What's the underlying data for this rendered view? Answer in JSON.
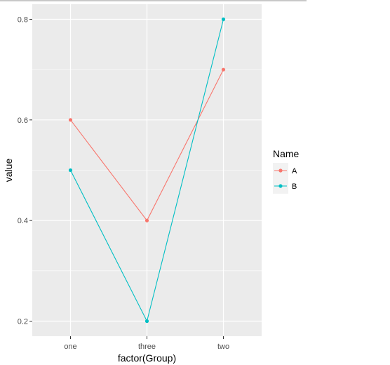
{
  "chart_data": {
    "type": "line",
    "categories": [
      "one",
      "three",
      "two"
    ],
    "series": [
      {
        "name": "A",
        "values": [
          0.6,
          0.4,
          0.7
        ],
        "color": "#F8766D"
      },
      {
        "name": "B",
        "values": [
          0.5,
          0.2,
          0.8
        ],
        "color": "#00BFC4"
      }
    ],
    "xlabel": "factor(Group)",
    "ylabel": "value",
    "yticks": [
      0.2,
      0.4,
      0.6,
      0.8
    ],
    "ytick_labels": [
      "0.2",
      "0.4",
      "0.6",
      "0.8"
    ],
    "ylim": [
      0.17,
      0.83
    ],
    "grid": true,
    "panel_background": "#EBEBEB",
    "legend": {
      "title": "Name",
      "position": "right"
    }
  }
}
